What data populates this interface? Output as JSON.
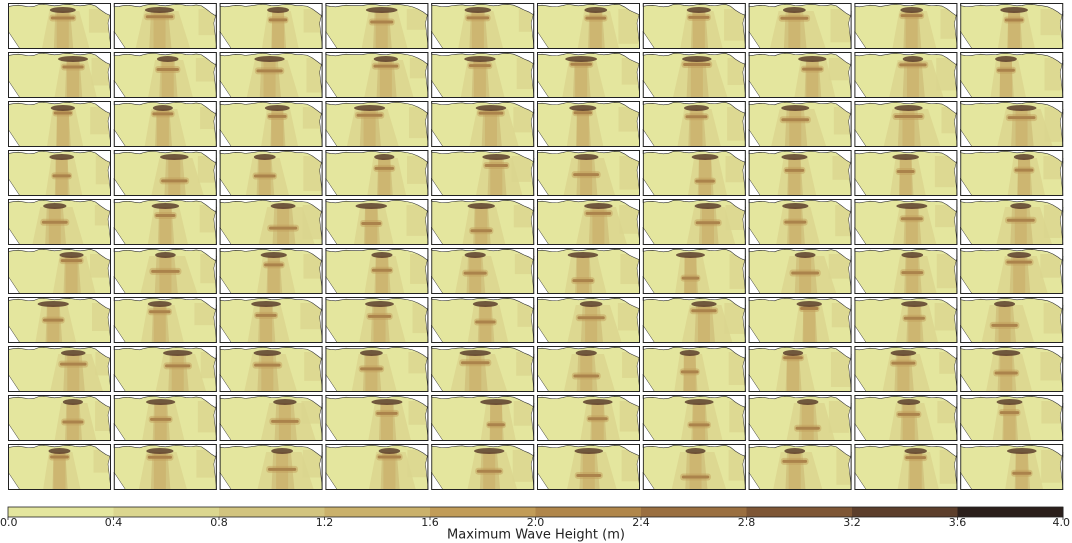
{
  "chart_data": {
    "type": "colorbar",
    "xlabel": "Maximum Wave Height (m)",
    "xlim": [
      0,
      4
    ],
    "xticks": [
      {
        "value": 0,
        "label": "0.0"
      },
      0.4,
      0.8,
      1.2,
      1.6,
      {
        "value": 2,
        "label": "2.0"
      },
      2.4,
      2.8,
      3.2,
      3.6,
      {
        "value": 4,
        "label": "4.0"
      }
    ],
    "colors": [
      "#e4e69e",
      "#dbd68f",
      "#d2c47f",
      "#cab16b",
      "#c19c58",
      "#b0864a",
      "#9a6f40",
      "#7e5635",
      "#5c3e2b",
      "#2b1f1b"
    ]
  }
}
